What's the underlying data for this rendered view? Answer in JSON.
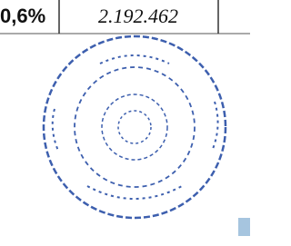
{
  "table": {
    "rows": [
      [
        "0,6%",
        "2.192.462"
      ]
    ]
  }
}
